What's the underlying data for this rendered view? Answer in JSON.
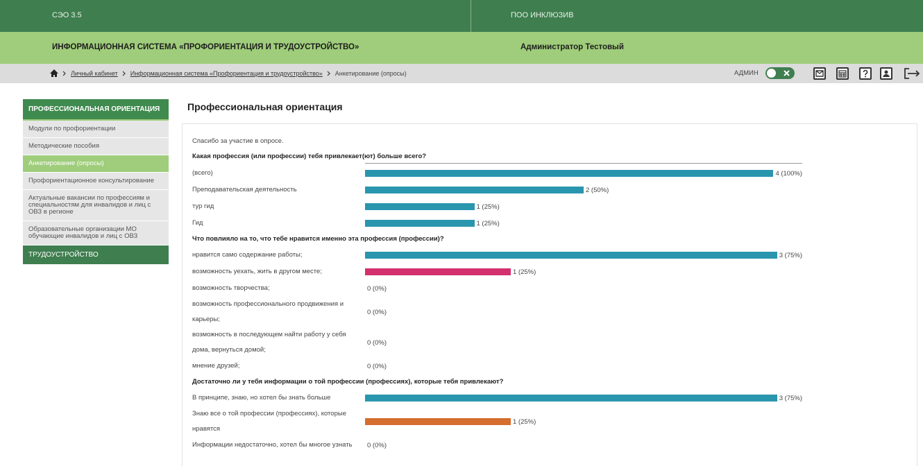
{
  "header": {
    "org": "СЭО 3.5",
    "institution": "ПОО ИНКЛЮЗИВ",
    "system": "ИНФОРМАЦИОННАЯ СИСТЕМА «ПРОФОРИЕНТАЦИЯ И ТРУДОУСТРОЙСТВО»",
    "user": "Администратор Тестовый"
  },
  "breadcrumb": [
    "Личный кабинет",
    "Информационная система «Профориентация и трудоустройство»",
    "Анкетирование (опросы)"
  ],
  "role": "АДМИН",
  "sidebar": {
    "section": "ПРОФЕССИОНАЛЬНАЯ ОРИЕНТАЦИЯ",
    "items": [
      "Модули по профориентации",
      "Методические пособия",
      "Анкетирование (опросы)",
      "Профориентационное консультирование",
      "Актуальные вакансии по профессиям и специальностям для инвалидов и лиц с ОВЗ в регионе",
      "Образовательные организации МО обучающие инвалидов и лиц с ОВЗ"
    ],
    "active": 2,
    "footer": "ТРУДОУСТРОЙСТВО"
  },
  "content": {
    "title": "Профессиональная ориентация",
    "thanks": "Спасибо за участие в опросе.",
    "questions": [
      {
        "text": "Какая профессия (или профессии) тебя привлекает(ют) больше всего?",
        "answers": [
          {
            "label": "(всего)",
            "count": 4,
            "value_label": "4 (100%)",
            "color": "#2a96ae"
          },
          {
            "label": "Преподавательская деятельность",
            "count": 2,
            "value_label": "2 (50%)",
            "color": "#2a96ae"
          },
          {
            "label": "тур гид",
            "count": 1,
            "value_label": "1 (25%)",
            "color": "#2a96ae"
          },
          {
            "label": "Гид",
            "count": 1,
            "value_label": "1 (25%)",
            "color": "#2a96ae"
          }
        ]
      },
      {
        "text": "Что повлияло на то, что тебе нравится именно эта профессия (профессии)?",
        "answers": [
          {
            "label": "нравится само содержание работы;",
            "count": 3,
            "value_label": "3 (75%)",
            "color": "#2a96ae"
          },
          {
            "label": "возможность уехать, жить в другом месте;",
            "count": 1,
            "value_label": "1 (25%)",
            "color": "#d2306e"
          },
          {
            "label": "возможность творчества;",
            "count": 0,
            "value_label": "0 (0%)",
            "color": "#2a96ae"
          },
          {
            "label": "возможность профессионального продвижения и карьеры;",
            "count": 0,
            "value_label": "0 (0%)",
            "color": "#2a96ae"
          },
          {
            "label": "возможность в последующем найти работу у себя дома, вернуться домой;",
            "count": 0,
            "value_label": "0 (0%)",
            "color": "#2a96ae"
          },
          {
            "label": "мнение друзей;",
            "count": 0,
            "value_label": "0 (0%)",
            "color": "#2a96ae"
          }
        ]
      },
      {
        "text": "Достаточно ли у тебя информации о той профессии (профессиях), которые тебя привлекают?",
        "answers": [
          {
            "label": "В принципе, знаю, но хотел бы знать больше",
            "count": 3,
            "value_label": "3 (75%)",
            "color": "#2a96ae"
          },
          {
            "label": "Знаю все о той профессии (профессиях), которые нравятся",
            "count": 1,
            "value_label": "1 (25%)",
            "color": "#d46d2e"
          },
          {
            "label": "Информации недостаточно, хотел бы многое узнать",
            "count": 0,
            "value_label": "0 (0%)",
            "color": "#2a96ae"
          }
        ]
      }
    ]
  }
}
